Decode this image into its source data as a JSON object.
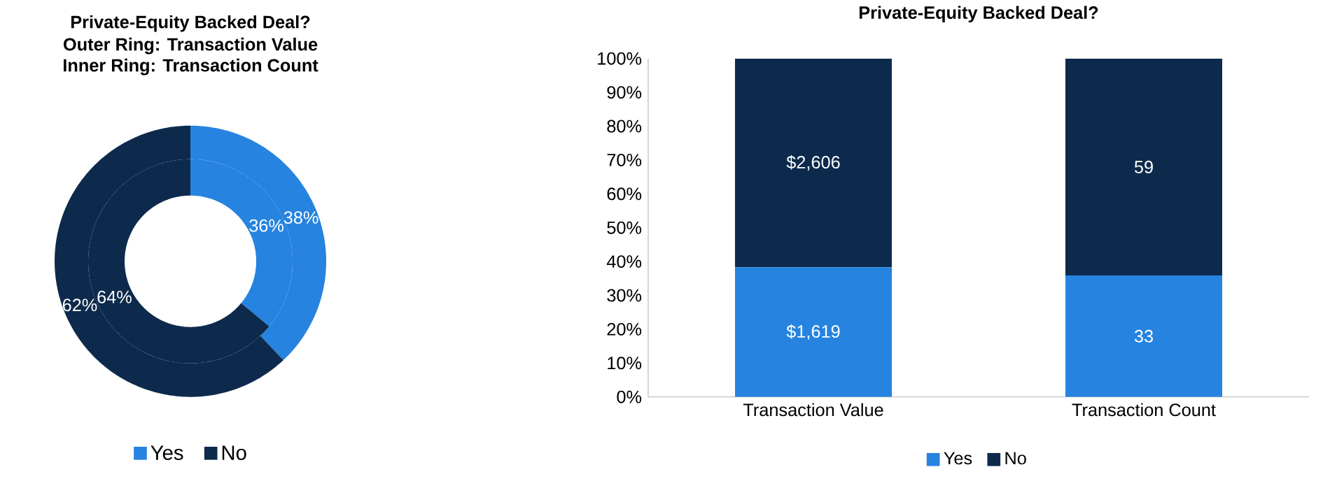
{
  "chart_data": [
    {
      "type": "donut",
      "title": "Private-Equity Backed Deal?",
      "annotations": [
        "Outer Ring: Transaction Value",
        "Inner Ring: Transaction Count"
      ],
      "categories": [
        "Yes",
        "No"
      ],
      "colors": [
        "#2683e0",
        "#0d2a4c"
      ],
      "legend": "bottom",
      "series": [
        {
          "values": [
            38,
            62
          ],
          "value_labels": [
            "38%",
            "62%"
          ]
        },
        {
          "values": [
            36,
            64
          ],
          "value_labels": [
            "36%",
            "64%"
          ]
        }
      ]
    },
    {
      "type": "bar",
      "title": "Private-Equity Backed Deal?",
      "stacked": true,
      "categories": [
        "Transaction Value",
        "Transaction Count"
      ],
      "ylim": [
        0,
        100
      ],
      "yticks": [
        {
          "value": 0,
          "label": "0%"
        },
        {
          "value": 10,
          "label": "10%"
        },
        {
          "value": 20,
          "label": "20%"
        },
        {
          "value": 30,
          "label": "30%"
        },
        {
          "value": 40,
          "label": "40%"
        },
        {
          "value": 50,
          "label": "50%"
        },
        {
          "value": 60,
          "label": "60%"
        },
        {
          "value": 70,
          "label": "70%"
        },
        {
          "value": 80,
          "label": "80%"
        },
        {
          "value": 90,
          "label": "90%"
        },
        {
          "value": 100,
          "label": "100%"
        }
      ],
      "legend": "bottom",
      "series": [
        {
          "name": "Yes",
          "color": "#2683e0",
          "values": [
            38.3,
            35.9
          ]
        },
        {
          "name": "No",
          "color": "#0d2a4c",
          "values": [
            61.7,
            64.1
          ]
        }
      ],
      "annotations": [
        "$1,619",
        "33",
        "$2,606",
        "59"
      ]
    }
  ]
}
